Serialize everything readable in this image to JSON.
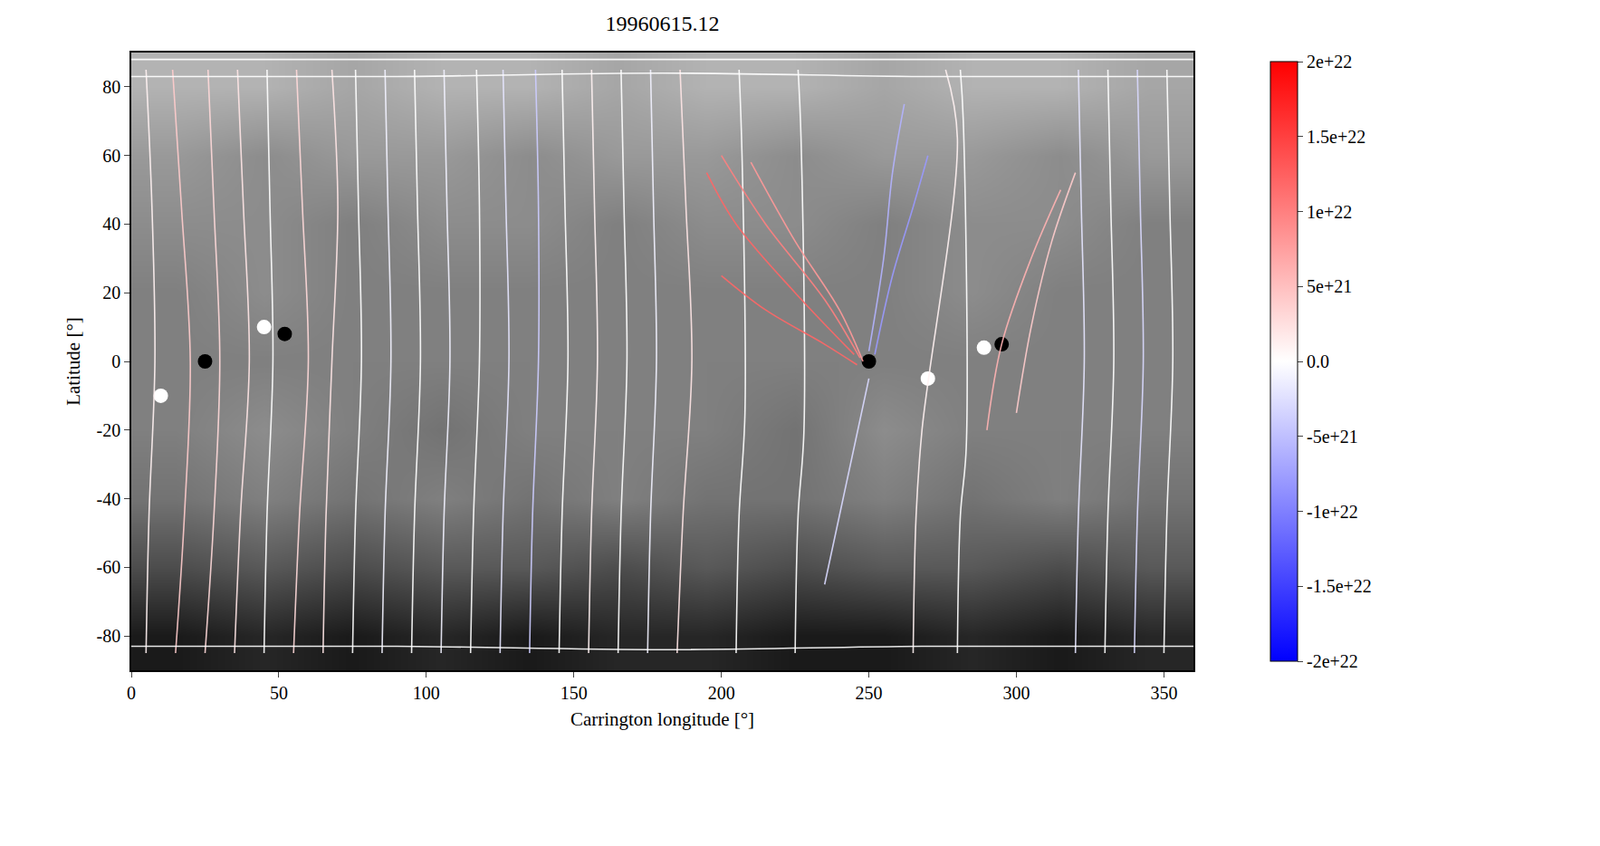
{
  "chart_data": {
    "type": "heatmap_streamlines",
    "title": "19960615.12",
    "x_label": "Carrington longitude [°]",
    "y_label": "Latitude [°]",
    "xlim": [
      0,
      360
    ],
    "ylim": [
      -90,
      90
    ],
    "xticks": [
      0,
      50,
      100,
      150,
      200,
      250,
      300,
      350
    ],
    "yticks": [
      -80,
      -60,
      -40,
      -20,
      0,
      20,
      40,
      60,
      80
    ],
    "magnetogram": {
      "x": [
        15,
        45,
        75,
        105,
        135,
        165,
        195,
        225,
        255,
        285,
        315,
        345
      ],
      "y": [
        -80,
        -60,
        -40,
        -20,
        0,
        20,
        40,
        60,
        80
      ],
      "z": [
        [
          -8,
          -7,
          -8,
          -7,
          -8,
          -7,
          -7,
          -8,
          -8,
          -7,
          -8,
          -7
        ],
        [
          -4,
          -3,
          -4,
          -3,
          -3,
          -4,
          -3,
          -4,
          -3,
          -3,
          -4,
          -3
        ],
        [
          -1,
          0,
          -1,
          0,
          -1,
          0,
          -1,
          -1,
          0,
          -1,
          0,
          -1
        ],
        [
          0,
          1,
          0,
          -1,
          0,
          0,
          0,
          -1,
          1,
          0,
          0,
          0
        ],
        [
          0,
          0,
          0,
          0,
          0,
          0,
          0,
          0,
          0,
          0,
          0,
          0
        ],
        [
          0,
          1,
          0,
          0,
          0,
          0,
          0,
          0,
          0,
          1,
          0,
          0
        ],
        [
          1,
          1,
          0,
          1,
          1,
          0,
          1,
          1,
          0,
          1,
          1,
          0
        ],
        [
          2,
          1,
          2,
          2,
          1,
          2,
          2,
          1,
          2,
          2,
          1,
          2
        ],
        [
          4,
          4,
          3,
          4,
          4,
          3,
          4,
          4,
          3,
          4,
          4,
          3
        ]
      ],
      "range": [
        -10,
        10
      ]
    },
    "spots": {
      "x": [
        250,
        270,
        45,
        52,
        25,
        10,
        295,
        289
      ],
      "y": [
        0,
        -5,
        10,
        8,
        0,
        -10,
        5,
        4
      ],
      "values": [
        -60,
        50,
        40,
        -40,
        -30,
        20,
        -40,
        30
      ]
    },
    "field_lines": [
      {
        "x": [
          5,
          6,
          8,
          7,
          5
        ],
        "y": [
          -85,
          -45,
          0,
          45,
          85
        ],
        "flux": 1e+21
      },
      {
        "x": [
          15,
          18,
          20,
          17,
          14
        ],
        "y": [
          -85,
          -45,
          0,
          45,
          85
        ],
        "flux": 4e+21
      },
      {
        "x": [
          25,
          28,
          30,
          28,
          26
        ],
        "y": [
          -85,
          -45,
          0,
          45,
          85
        ],
        "flux": 3e+21
      },
      {
        "x": [
          35,
          37,
          40,
          38,
          36
        ],
        "y": [
          -85,
          -45,
          0,
          45,
          85
        ],
        "flux": 2e+21
      },
      {
        "x": [
          45,
          46,
          48,
          47,
          46
        ],
        "y": [
          -85,
          -45,
          0,
          45,
          85
        ],
        "flux": 0
      },
      {
        "x": [
          55,
          57,
          60,
          58,
          56
        ],
        "y": [
          -85,
          -45,
          0,
          45,
          85
        ],
        "flux": 3e+21
      },
      {
        "x": [
          65,
          66,
          68,
          70,
          68
        ],
        "y": [
          -85,
          -45,
          0,
          45,
          85
        ],
        "flux": 2e+21
      },
      {
        "x": [
          75,
          76,
          78,
          77,
          76
        ],
        "y": [
          -85,
          -45,
          0,
          45,
          85
        ],
        "flux": 0
      },
      {
        "x": [
          85,
          86,
          88,
          87,
          86
        ],
        "y": [
          -85,
          -45,
          0,
          45,
          85
        ],
        "flux": -1e+21
      },
      {
        "x": [
          95,
          96,
          98,
          97,
          96
        ],
        "y": [
          -85,
          -45,
          0,
          45,
          85
        ],
        "flux": 0
      },
      {
        "x": [
          105,
          106,
          108,
          107,
          106
        ],
        "y": [
          -85,
          -45,
          0,
          45,
          85
        ],
        "flux": -1e+21
      },
      {
        "x": [
          115,
          116,
          118,
          118,
          117
        ],
        "y": [
          -85,
          -45,
          0,
          45,
          85
        ],
        "flux": 0
      },
      {
        "x": [
          125,
          126,
          128,
          127,
          126
        ],
        "y": [
          -85,
          -45,
          0,
          45,
          85
        ],
        "flux": -2e+21
      },
      {
        "x": [
          135,
          136,
          138,
          138,
          137
        ],
        "y": [
          -85,
          -45,
          0,
          45,
          85
        ],
        "flux": -4e+21
      },
      {
        "x": [
          145,
          146,
          148,
          147,
          146
        ],
        "y": [
          -85,
          -45,
          0,
          45,
          85
        ],
        "flux": 0
      },
      {
        "x": [
          155,
          156,
          158,
          157,
          156
        ],
        "y": [
          -85,
          -45,
          0,
          45,
          85
        ],
        "flux": 1e+21
      },
      {
        "x": [
          165,
          166,
          168,
          167,
          166
        ],
        "y": [
          -85,
          -45,
          0,
          45,
          85
        ],
        "flux": 0
      },
      {
        "x": [
          175,
          176,
          178,
          177,
          176
        ],
        "y": [
          -85,
          -45,
          0,
          45,
          85
        ],
        "flux": -1e+21
      },
      {
        "x": [
          185,
          187,
          190,
          188,
          186
        ],
        "y": [
          -85,
          -45,
          0,
          45,
          85
        ],
        "flux": 2e+21
      },
      {
        "x": [
          205,
          206,
          208,
          207,
          206
        ],
        "y": [
          -85,
          -45,
          -15,
          60,
          85
        ],
        "flux": 0
      },
      {
        "x": [
          225,
          226,
          228,
          227,
          226
        ],
        "y": [
          -85,
          -45,
          -20,
          65,
          85
        ],
        "flux": 0
      },
      {
        "x": [
          265,
          266,
          268,
          280,
          276
        ],
        "y": [
          -85,
          -45,
          -20,
          65,
          85
        ],
        "flux": 1e+21
      },
      {
        "x": [
          280,
          281,
          283,
          282,
          281
        ],
        "y": [
          -85,
          -45,
          -25,
          70,
          85
        ],
        "flux": 0
      },
      {
        "x": [
          320,
          321,
          323,
          322,
          321
        ],
        "y": [
          -85,
          -45,
          0,
          45,
          85
        ],
        "flux": -2e+21
      },
      {
        "x": [
          330,
          331,
          333,
          332,
          331
        ],
        "y": [
          -85,
          -45,
          0,
          45,
          85
        ],
        "flux": 0
      },
      {
        "x": [
          340,
          341,
          343,
          342,
          341
        ],
        "y": [
          -85,
          -45,
          0,
          45,
          85
        ],
        "flux": -3e+21
      },
      {
        "x": [
          350,
          351,
          353,
          352,
          351
        ],
        "y": [
          -85,
          -45,
          0,
          45,
          85
        ],
        "flux": 0
      },
      {
        "x": [
          195,
          205,
          225,
          245
        ],
        "y": [
          55,
          40,
          20,
          2
        ],
        "flux": 1.2e+22
      },
      {
        "x": [
          200,
          215,
          235,
          247
        ],
        "y": [
          60,
          40,
          18,
          1
        ],
        "flux": 1e+22
      },
      {
        "x": [
          210,
          225,
          240,
          248
        ],
        "y": [
          58,
          35,
          15,
          0
        ],
        "flux": 8e+21
      },
      {
        "x": [
          200,
          215,
          235,
          246
        ],
        "y": [
          25,
          15,
          5,
          -1
        ],
        "flux": 1.2e+22
      },
      {
        "x": [
          252,
          258,
          265,
          270
        ],
        "y": [
          2,
          25,
          45,
          60
        ],
        "flux": -8e+21
      },
      {
        "x": [
          250,
          255,
          258,
          262
        ],
        "y": [
          3,
          30,
          55,
          75
        ],
        "flux": -6e+21
      },
      {
        "x": [
          250,
          245,
          240,
          235
        ],
        "y": [
          -5,
          -25,
          -45,
          -65
        ],
        "flux": -3e+21
      },
      {
        "x": [
          290,
          295,
          305,
          315
        ],
        "y": [
          -20,
          5,
          30,
          50
        ],
        "flux": 6e+21
      },
      {
        "x": [
          300,
          305,
          312,
          320
        ],
        "y": [
          -15,
          10,
          35,
          55
        ],
        "flux": 4e+21
      },
      {
        "x": [
          0,
          90,
          180,
          270,
          360
        ],
        "y": [
          83,
          83,
          84,
          83,
          83
        ],
        "flux": 0
      },
      {
        "x": [
          0,
          90,
          180,
          270,
          360
        ],
        "y": [
          -83,
          -83,
          -84,
          -83,
          -83
        ],
        "flux": 0
      },
      {
        "x": [
          0,
          90,
          180,
          270,
          360
        ],
        "y": [
          88,
          88,
          88,
          88,
          88
        ],
        "flux": 0
      }
    ],
    "colorbar": {
      "range": [
        -2e+22,
        2e+22
      ],
      "ticks": [
        {
          "value": 2e+22,
          "label": "2e+22"
        },
        {
          "value": 1.5e+22,
          "label": "1.5e+22"
        },
        {
          "value": 1e+22,
          "label": "1e+22"
        },
        {
          "value": 5e+21,
          "label": "5e+21"
        },
        {
          "value": 0,
          "label": "0.0"
        },
        {
          "value": -5e+21,
          "label": "-5e+21"
        },
        {
          "value": -1e+22,
          "label": "-1e+22"
        },
        {
          "value": -1.5e+22,
          "label": "-1.5e+22"
        },
        {
          "value": -2e+22,
          "label": "-2e+22"
        }
      ]
    }
  }
}
